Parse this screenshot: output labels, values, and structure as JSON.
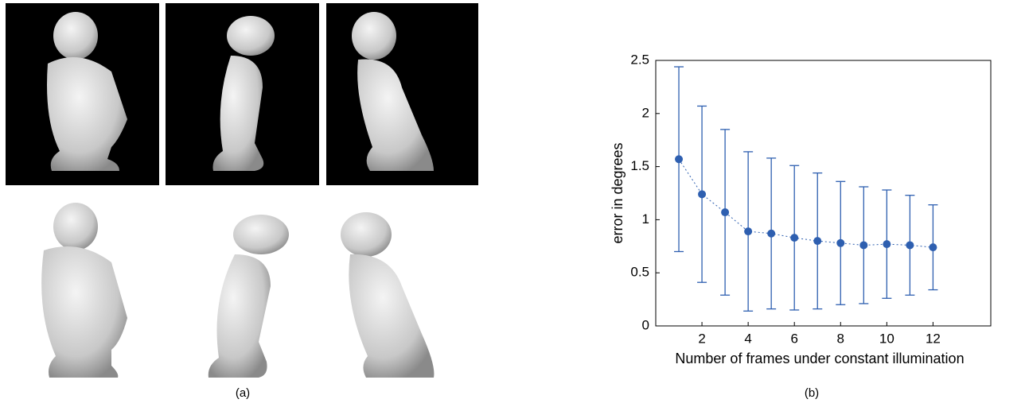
{
  "captions": {
    "a": "(a)",
    "b": "(b)"
  },
  "chart_data": {
    "type": "errorbar",
    "xlabel": "Number of frames under constant illumination",
    "ylabel": "error in degrees",
    "x": [
      1,
      2,
      3,
      4,
      5,
      6,
      7,
      8,
      9,
      10,
      11,
      12
    ],
    "series": [
      {
        "color": "#2e5fb0",
        "values": [
          1.57,
          1.24,
          1.07,
          0.89,
          0.87,
          0.83,
          0.8,
          0.78,
          0.76,
          0.77,
          0.76,
          0.74
        ],
        "errors": [
          0.87,
          0.83,
          0.78,
          0.75,
          0.71,
          0.68,
          0.64,
          0.58,
          0.55,
          0.51,
          0.47,
          0.4
        ]
      }
    ],
    "xlim": [
      0,
      14.5
    ],
    "xticks": [
      2,
      4,
      6,
      8,
      10,
      12
    ],
    "ylim": [
      0,
      2.5
    ],
    "yticks": [
      0,
      0.5,
      1,
      1.5,
      2,
      2.5
    ]
  }
}
